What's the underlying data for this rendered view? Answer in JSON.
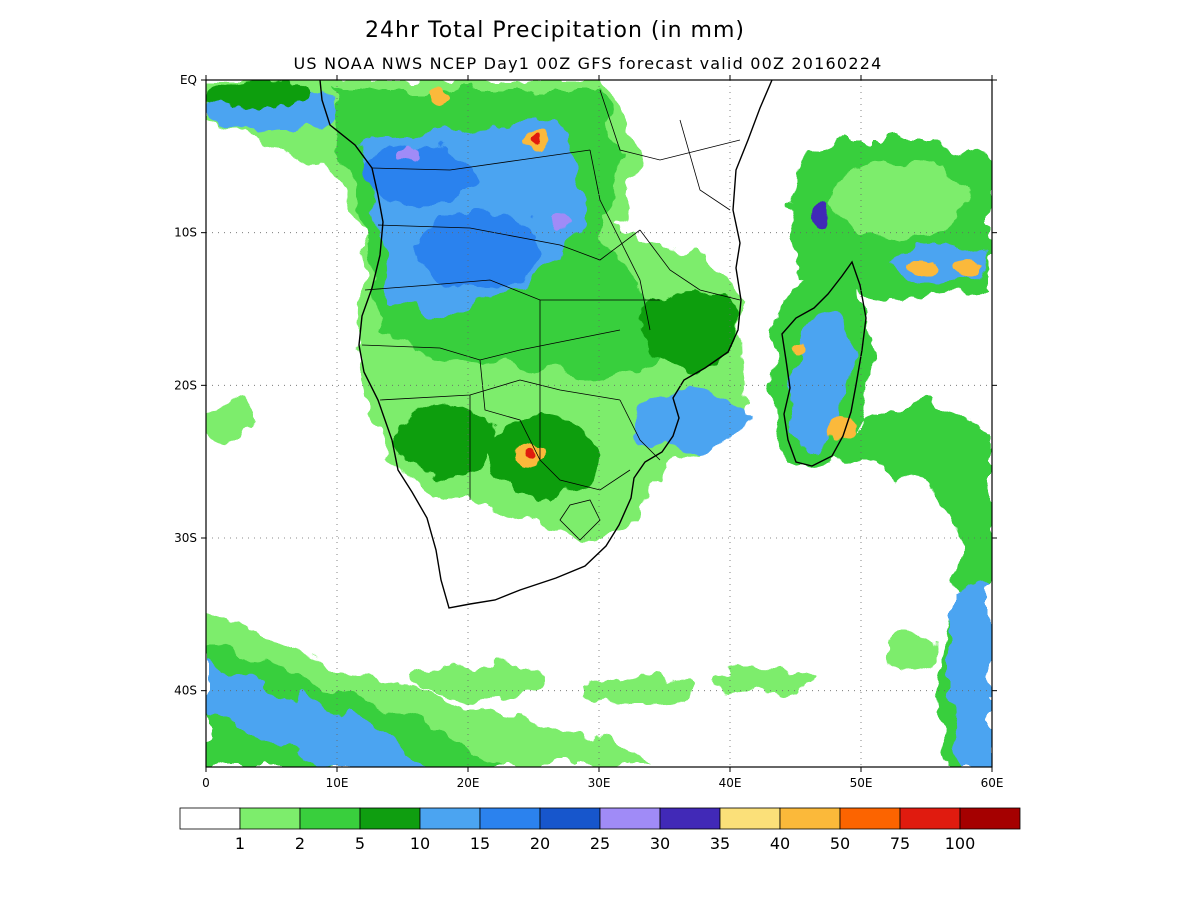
{
  "header": {
    "title": "24hr Total Precipitation (in mm)",
    "subtitle": "US NOAA NWS NCEP Day1 00Z GFS forecast valid 00Z 20160224"
  },
  "map": {
    "lat_range": [
      -45,
      0
    ],
    "lon_range": [
      0,
      60
    ],
    "lat_ticks": [
      {
        "value": 0,
        "label": "EQ"
      },
      {
        "value": -10,
        "label": "10S"
      },
      {
        "value": -20,
        "label": "20S"
      },
      {
        "value": -30,
        "label": "30S"
      },
      {
        "value": -40,
        "label": "40S"
      }
    ],
    "lon_ticks": [
      {
        "value": 0,
        "label": "0"
      },
      {
        "value": 10,
        "label": "10E"
      },
      {
        "value": 20,
        "label": "20E"
      },
      {
        "value": 30,
        "label": "30E"
      },
      {
        "value": 40,
        "label": "40E"
      },
      {
        "value": 50,
        "label": "50E"
      },
      {
        "value": 60,
        "label": "60E"
      }
    ],
    "grid": "dotted",
    "regions": [
      "southern-africa",
      "madagascar"
    ]
  },
  "colorbar": {
    "colors": [
      "#ffffff",
      "#7ded6c",
      "#39cf3d",
      "#0f9e10",
      "#4ba4f1",
      "#2b82ee",
      "#1756cc",
      "#a08bf7",
      "#4129b7",
      "#fbe079",
      "#fbb93a",
      "#fc6400",
      "#e01b0f",
      "#a50000"
    ],
    "labels": [
      "1",
      "2",
      "5",
      "10",
      "15",
      "20",
      "25",
      "30",
      "35",
      "40",
      "50",
      "75",
      "100"
    ]
  }
}
